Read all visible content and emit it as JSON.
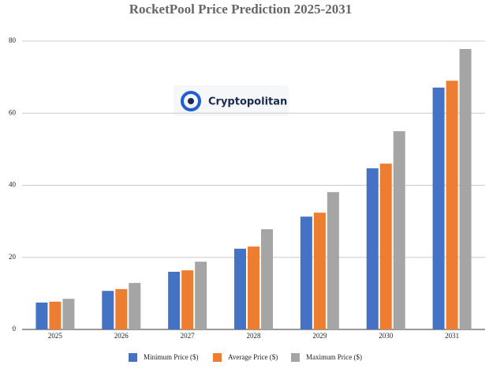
{
  "chart_data": {
    "type": "bar",
    "title": "RocketPool Price Prediction 2025-2031",
    "annotation": "Cryptopolitan",
    "categories": [
      "2025",
      "2026",
      "2027",
      "2028",
      "2029",
      "2030",
      "2031"
    ],
    "series": [
      {
        "name": "Minimum Price ($)",
        "color": "#4472c4",
        "values": [
          7.45,
          10.7,
          16.0,
          22.4,
          31.3,
          44.7,
          67.1
        ]
      },
      {
        "name": "Average Price ($)",
        "color": "#ed7d31",
        "values": [
          7.7,
          11.2,
          16.4,
          23.0,
          32.4,
          46.0,
          69.0
        ]
      },
      {
        "name": "Maximum Price ($)",
        "color": "#a5a5a5",
        "values": [
          8.5,
          12.9,
          18.8,
          27.8,
          38.1,
          55.0,
          77.8
        ]
      }
    ],
    "ylim": [
      0,
      80
    ],
    "yticks": [
      0,
      20,
      40,
      60,
      80
    ],
    "grid": true,
    "legend": "bottom"
  }
}
